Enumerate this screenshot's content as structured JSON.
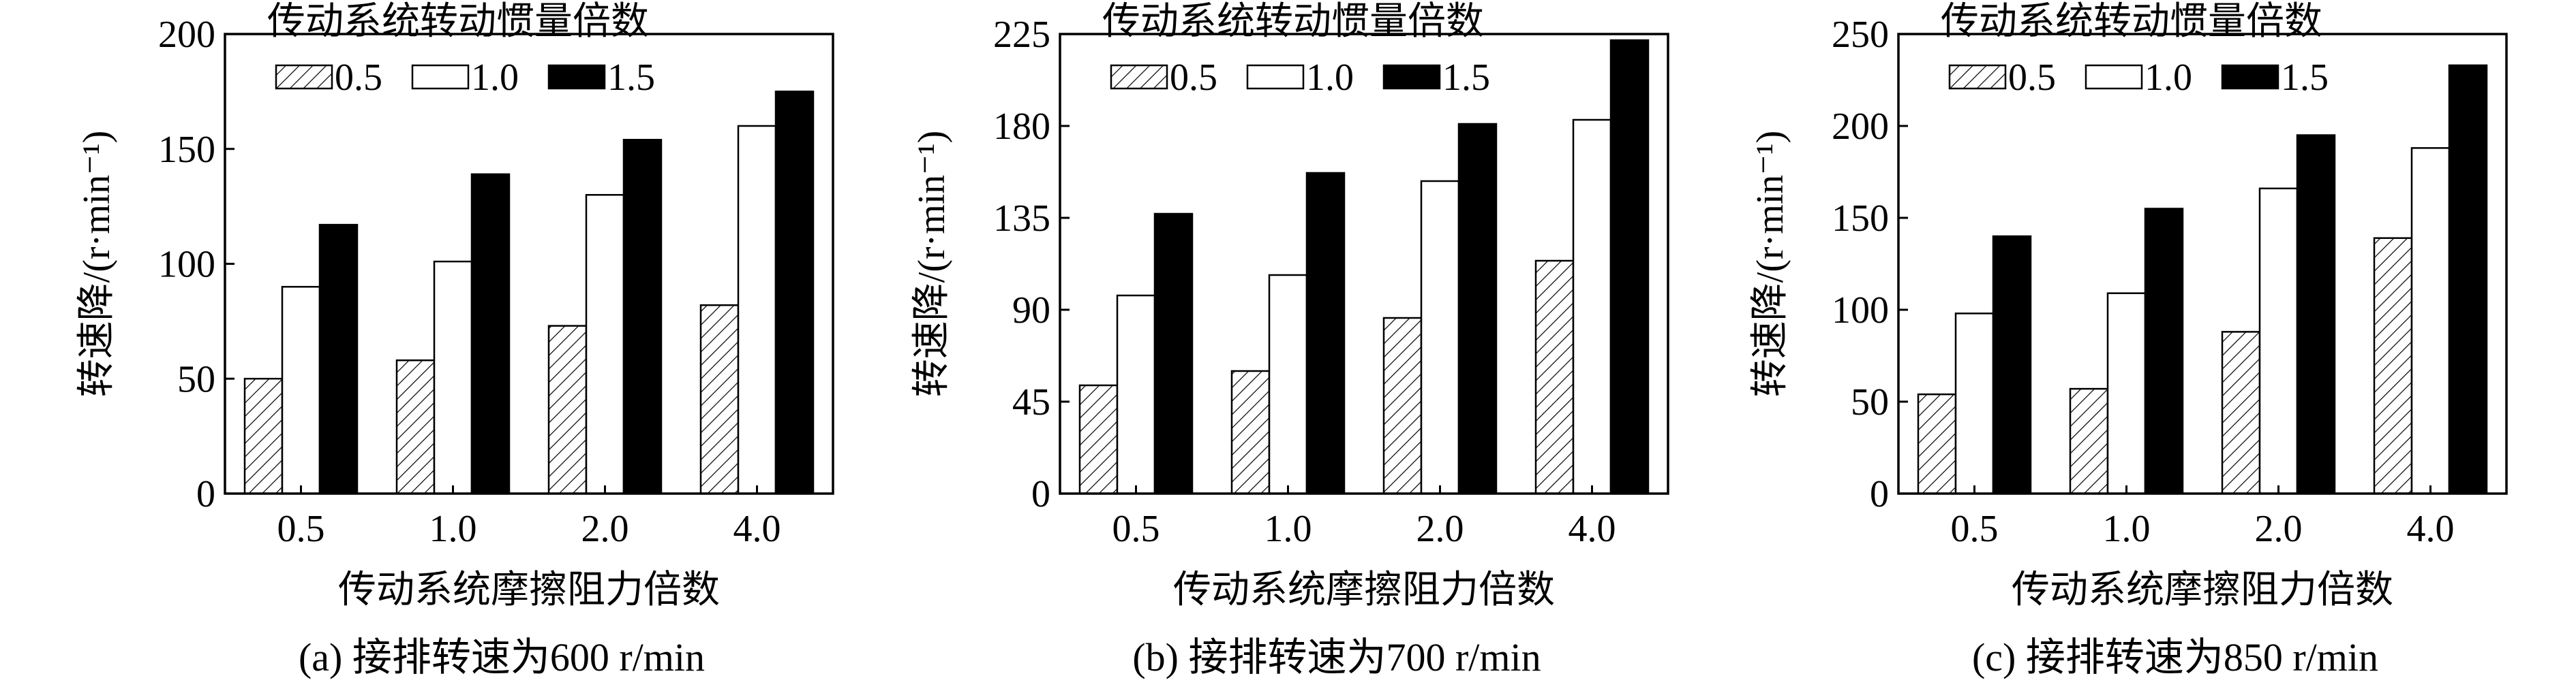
{
  "chart_data": [
    {
      "type": "bar",
      "caption": "(a) 接排转速为600 r/min",
      "xlabel": "传动系统摩擦阻力倍数",
      "ylabel": "转速降/(r·min⁻¹)",
      "legend_title": "传动系统转动惯量倍数",
      "categories": [
        "0.5",
        "1.0",
        "2.0",
        "4.0"
      ],
      "ylim": [
        0,
        200
      ],
      "yticks": [
        "0",
        "50",
        "100",
        "150",
        "200"
      ],
      "series": [
        {
          "name": "0.5",
          "pattern": "hatch",
          "values": [
            50,
            58,
            73,
            82
          ]
        },
        {
          "name": "1.0",
          "pattern": "white",
          "values": [
            90,
            101,
            130,
            160
          ]
        },
        {
          "name": "1.5",
          "pattern": "black",
          "values": [
            117,
            139,
            154,
            175
          ]
        }
      ]
    },
    {
      "type": "bar",
      "caption": "(b) 接排转速为700 r/min",
      "xlabel": "传动系统摩擦阻力倍数",
      "ylabel": "转速降/(r·min⁻¹)",
      "legend_title": "传动系统转动惯量倍数",
      "categories": [
        "0.5",
        "1.0",
        "2.0",
        "4.0"
      ],
      "ylim": [
        0,
        225
      ],
      "yticks": [
        "0",
        "45",
        "90",
        "135",
        "180",
        "225"
      ],
      "series": [
        {
          "name": "0.5",
          "pattern": "hatch",
          "values": [
            53,
            60,
            86,
            114
          ]
        },
        {
          "name": "1.0",
          "pattern": "white",
          "values": [
            97,
            107,
            153,
            183
          ]
        },
        {
          "name": "1.5",
          "pattern": "black",
          "values": [
            137,
            157,
            181,
            222
          ]
        }
      ]
    },
    {
      "type": "bar",
      "caption": "(c) 接排转速为850 r/min",
      "xlabel": "传动系统摩擦阻力倍数",
      "ylabel": "转速降/(r·min⁻¹)",
      "legend_title": "传动系统转动惯量倍数",
      "categories": [
        "0.5",
        "1.0",
        "2.0",
        "4.0"
      ],
      "ylim": [
        0,
        250
      ],
      "yticks": [
        "0",
        "50",
        "100",
        "150",
        "200",
        "250"
      ],
      "series": [
        {
          "name": "0.5",
          "pattern": "hatch",
          "values": [
            54,
            57,
            88,
            139
          ]
        },
        {
          "name": "1.0",
          "pattern": "white",
          "values": [
            98,
            109,
            166,
            188
          ]
        },
        {
          "name": "1.5",
          "pattern": "black",
          "values": [
            140,
            155,
            195,
            233
          ]
        }
      ]
    }
  ]
}
